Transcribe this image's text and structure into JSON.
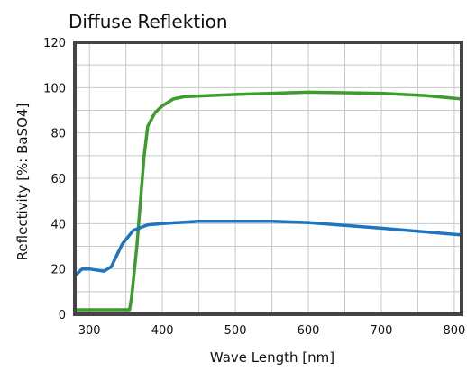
{
  "chart_data": {
    "type": "line",
    "title": "Diffuse Reflektion",
    "xlabel": "Wave Length [nm]",
    "ylabel": "Reflectivity [%: BaSO4]",
    "xlim": [
      280,
      810
    ],
    "ylim": [
      0,
      120
    ],
    "x_ticks": [
      300,
      400,
      500,
      600,
      700,
      800
    ],
    "y_ticks": [
      0,
      20,
      40,
      60,
      80,
      100,
      120
    ],
    "x_tick_labels": [
      "300",
      "400",
      "500",
      "600",
      "700",
      "800"
    ],
    "y_tick_labels": [
      "0",
      "20",
      "40",
      "60",
      "80",
      "100",
      "120"
    ],
    "grid": true,
    "series": [
      {
        "color": "#3c9c2c",
        "points": [
          [
            280,
            2
          ],
          [
            355,
            2
          ],
          [
            358,
            8
          ],
          [
            365,
            30
          ],
          [
            370,
            50
          ],
          [
            375,
            70
          ],
          [
            380,
            83
          ],
          [
            390,
            89
          ],
          [
            400,
            92
          ],
          [
            415,
            95
          ],
          [
            430,
            96
          ],
          [
            500,
            97
          ],
          [
            600,
            98
          ],
          [
            700,
            97.5
          ],
          [
            760,
            96.5
          ],
          [
            810,
            95
          ]
        ]
      },
      {
        "color": "#1e74bf",
        "points": [
          [
            280,
            17
          ],
          [
            290,
            20
          ],
          [
            300,
            20
          ],
          [
            320,
            19
          ],
          [
            330,
            21
          ],
          [
            345,
            31
          ],
          [
            360,
            37
          ],
          [
            380,
            39.5
          ],
          [
            400,
            40
          ],
          [
            450,
            41
          ],
          [
            500,
            41
          ],
          [
            550,
            41
          ],
          [
            600,
            40.5
          ],
          [
            700,
            38
          ],
          [
            810,
            35
          ]
        ]
      }
    ]
  }
}
